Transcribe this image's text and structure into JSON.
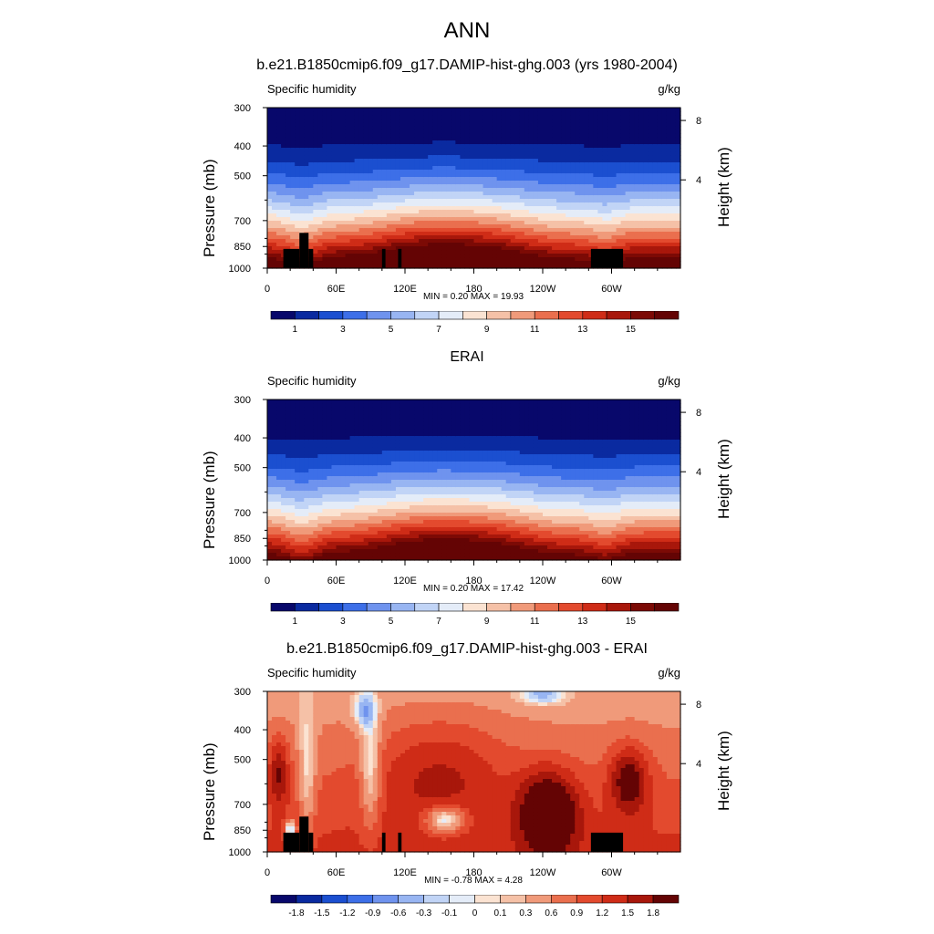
{
  "page_title": "ANN",
  "panels": [
    {
      "title": "b.e21.B1850cmip6.f09_g17.DAMIP-hist-ghg.003 (yrs 1980-2004)",
      "left_string": "Specific humidity",
      "right_string": "g/kg",
      "ylabel": "Pressure (mb)",
      "ylabel_right": "Height (km)",
      "minmax": "MIN =   0.20  MAX =  19.93",
      "colorbar_labels": [
        "1",
        "3",
        "5",
        "7",
        "9",
        "11",
        "13",
        "15"
      ]
    },
    {
      "title": "ERAI",
      "left_string": "Specific humidity",
      "right_string": "g/kg",
      "ylabel": "Pressure (mb)",
      "ylabel_right": "Height (km)",
      "minmax": "MIN =   0.20  MAX =  17.42",
      "colorbar_labels": [
        "1",
        "3",
        "5",
        "7",
        "9",
        "11",
        "13",
        "15"
      ]
    },
    {
      "title": "b.e21.B1850cmip6.f09_g17.DAMIP-hist-ghg.003 - ERAI",
      "left_string": "Specific humidity",
      "right_string": "g/kg",
      "ylabel": "Pressure (mb)",
      "ylabel_right": "Height (km)",
      "minmax": "MIN =  -0.78  MAX =   4.28",
      "colorbar_labels": [
        "-1.8",
        "-1.5",
        "-1.2",
        "-0.9",
        "-0.6",
        "-0.3",
        "-0.1",
        "0",
        "0.1",
        "0.3",
        "0.6",
        "0.9",
        "1.2",
        "1.5",
        "1.8"
      ]
    }
  ],
  "chart_data": [
    {
      "type": "heatmap",
      "title": "b.e21.B1850cmip6.f09_g17.DAMIP-hist-ghg.003 (yrs 1980-2004)",
      "xlabel": "",
      "ylabel": "Pressure (mb)",
      "ylabel_right": "Height (km)",
      "x_ticks": [
        "0",
        "60E",
        "120E",
        "180",
        "120W",
        "60W"
      ],
      "y_ticks": [
        "300",
        "400",
        "500",
        "700",
        "850",
        "1000"
      ],
      "y_right_ticks": [
        "8",
        "4"
      ],
      "xlim": [
        0,
        360
      ],
      "ylim": [
        1000,
        300
      ],
      "y_scale": "log",
      "min": 0.2,
      "max": 19.93,
      "colorbar_levels": [
        1,
        2,
        3,
        4,
        5,
        6,
        7,
        8,
        9,
        10,
        11,
        12,
        13,
        14,
        15,
        16
      ],
      "colormap": [
        "#08086b",
        "#0a2aa0",
        "#1b4fd0",
        "#3d6fe8",
        "#6f93ee",
        "#98b5f2",
        "#c1d4f6",
        "#e4ecf8",
        "#fbe3d2",
        "#f5c1a7",
        "#f09a7a",
        "#ea6f4e",
        "#e34a2e",
        "#cf2c17",
        "#a8170b",
        "#7c0a05",
        "#640404"
      ]
    },
    {
      "type": "heatmap",
      "title": "ERAI",
      "xlabel": "",
      "ylabel": "Pressure (mb)",
      "ylabel_right": "Height (km)",
      "x_ticks": [
        "0",
        "60E",
        "120E",
        "180",
        "120W",
        "60W"
      ],
      "y_ticks": [
        "300",
        "400",
        "500",
        "700",
        "850",
        "1000"
      ],
      "y_right_ticks": [
        "8",
        "4"
      ],
      "xlim": [
        0,
        360
      ],
      "ylim": [
        1000,
        300
      ],
      "y_scale": "log",
      "min": 0.2,
      "max": 17.42,
      "colorbar_levels": [
        1,
        2,
        3,
        4,
        5,
        6,
        7,
        8,
        9,
        10,
        11,
        12,
        13,
        14,
        15,
        16
      ],
      "colormap": [
        "#08086b",
        "#0a2aa0",
        "#1b4fd0",
        "#3d6fe8",
        "#6f93ee",
        "#98b5f2",
        "#c1d4f6",
        "#e4ecf8",
        "#fbe3d2",
        "#f5c1a7",
        "#f09a7a",
        "#ea6f4e",
        "#e34a2e",
        "#cf2c17",
        "#a8170b",
        "#7c0a05",
        "#640404"
      ]
    },
    {
      "type": "heatmap",
      "title": "b.e21.B1850cmip6.f09_g17.DAMIP-hist-ghg.003 - ERAI",
      "xlabel": "",
      "ylabel": "Pressure (mb)",
      "ylabel_right": "Height (km)",
      "x_ticks": [
        "0",
        "60E",
        "120E",
        "180",
        "120W",
        "60W"
      ],
      "y_ticks": [
        "300",
        "400",
        "500",
        "700",
        "850",
        "1000"
      ],
      "y_right_ticks": [
        "8",
        "4"
      ],
      "xlim": [
        0,
        360
      ],
      "ylim": [
        1000,
        300
      ],
      "y_scale": "log",
      "min": -0.78,
      "max": 4.28,
      "colorbar_levels": [
        -1.8,
        -1.5,
        -1.2,
        -0.9,
        -0.6,
        -0.3,
        -0.1,
        0,
        0.1,
        0.3,
        0.6,
        0.9,
        1.2,
        1.5,
        1.8
      ],
      "colormap": [
        "#08086b",
        "#0a2aa0",
        "#1b4fd0",
        "#3d6fe8",
        "#6f93ee",
        "#98b5f2",
        "#c1d4f6",
        "#e4ecf8",
        "#fbe3d2",
        "#f5c1a7",
        "#f09a7a",
        "#ea6f4e",
        "#e34a2e",
        "#cf2c17",
        "#a8170b",
        "#640404"
      ]
    }
  ]
}
